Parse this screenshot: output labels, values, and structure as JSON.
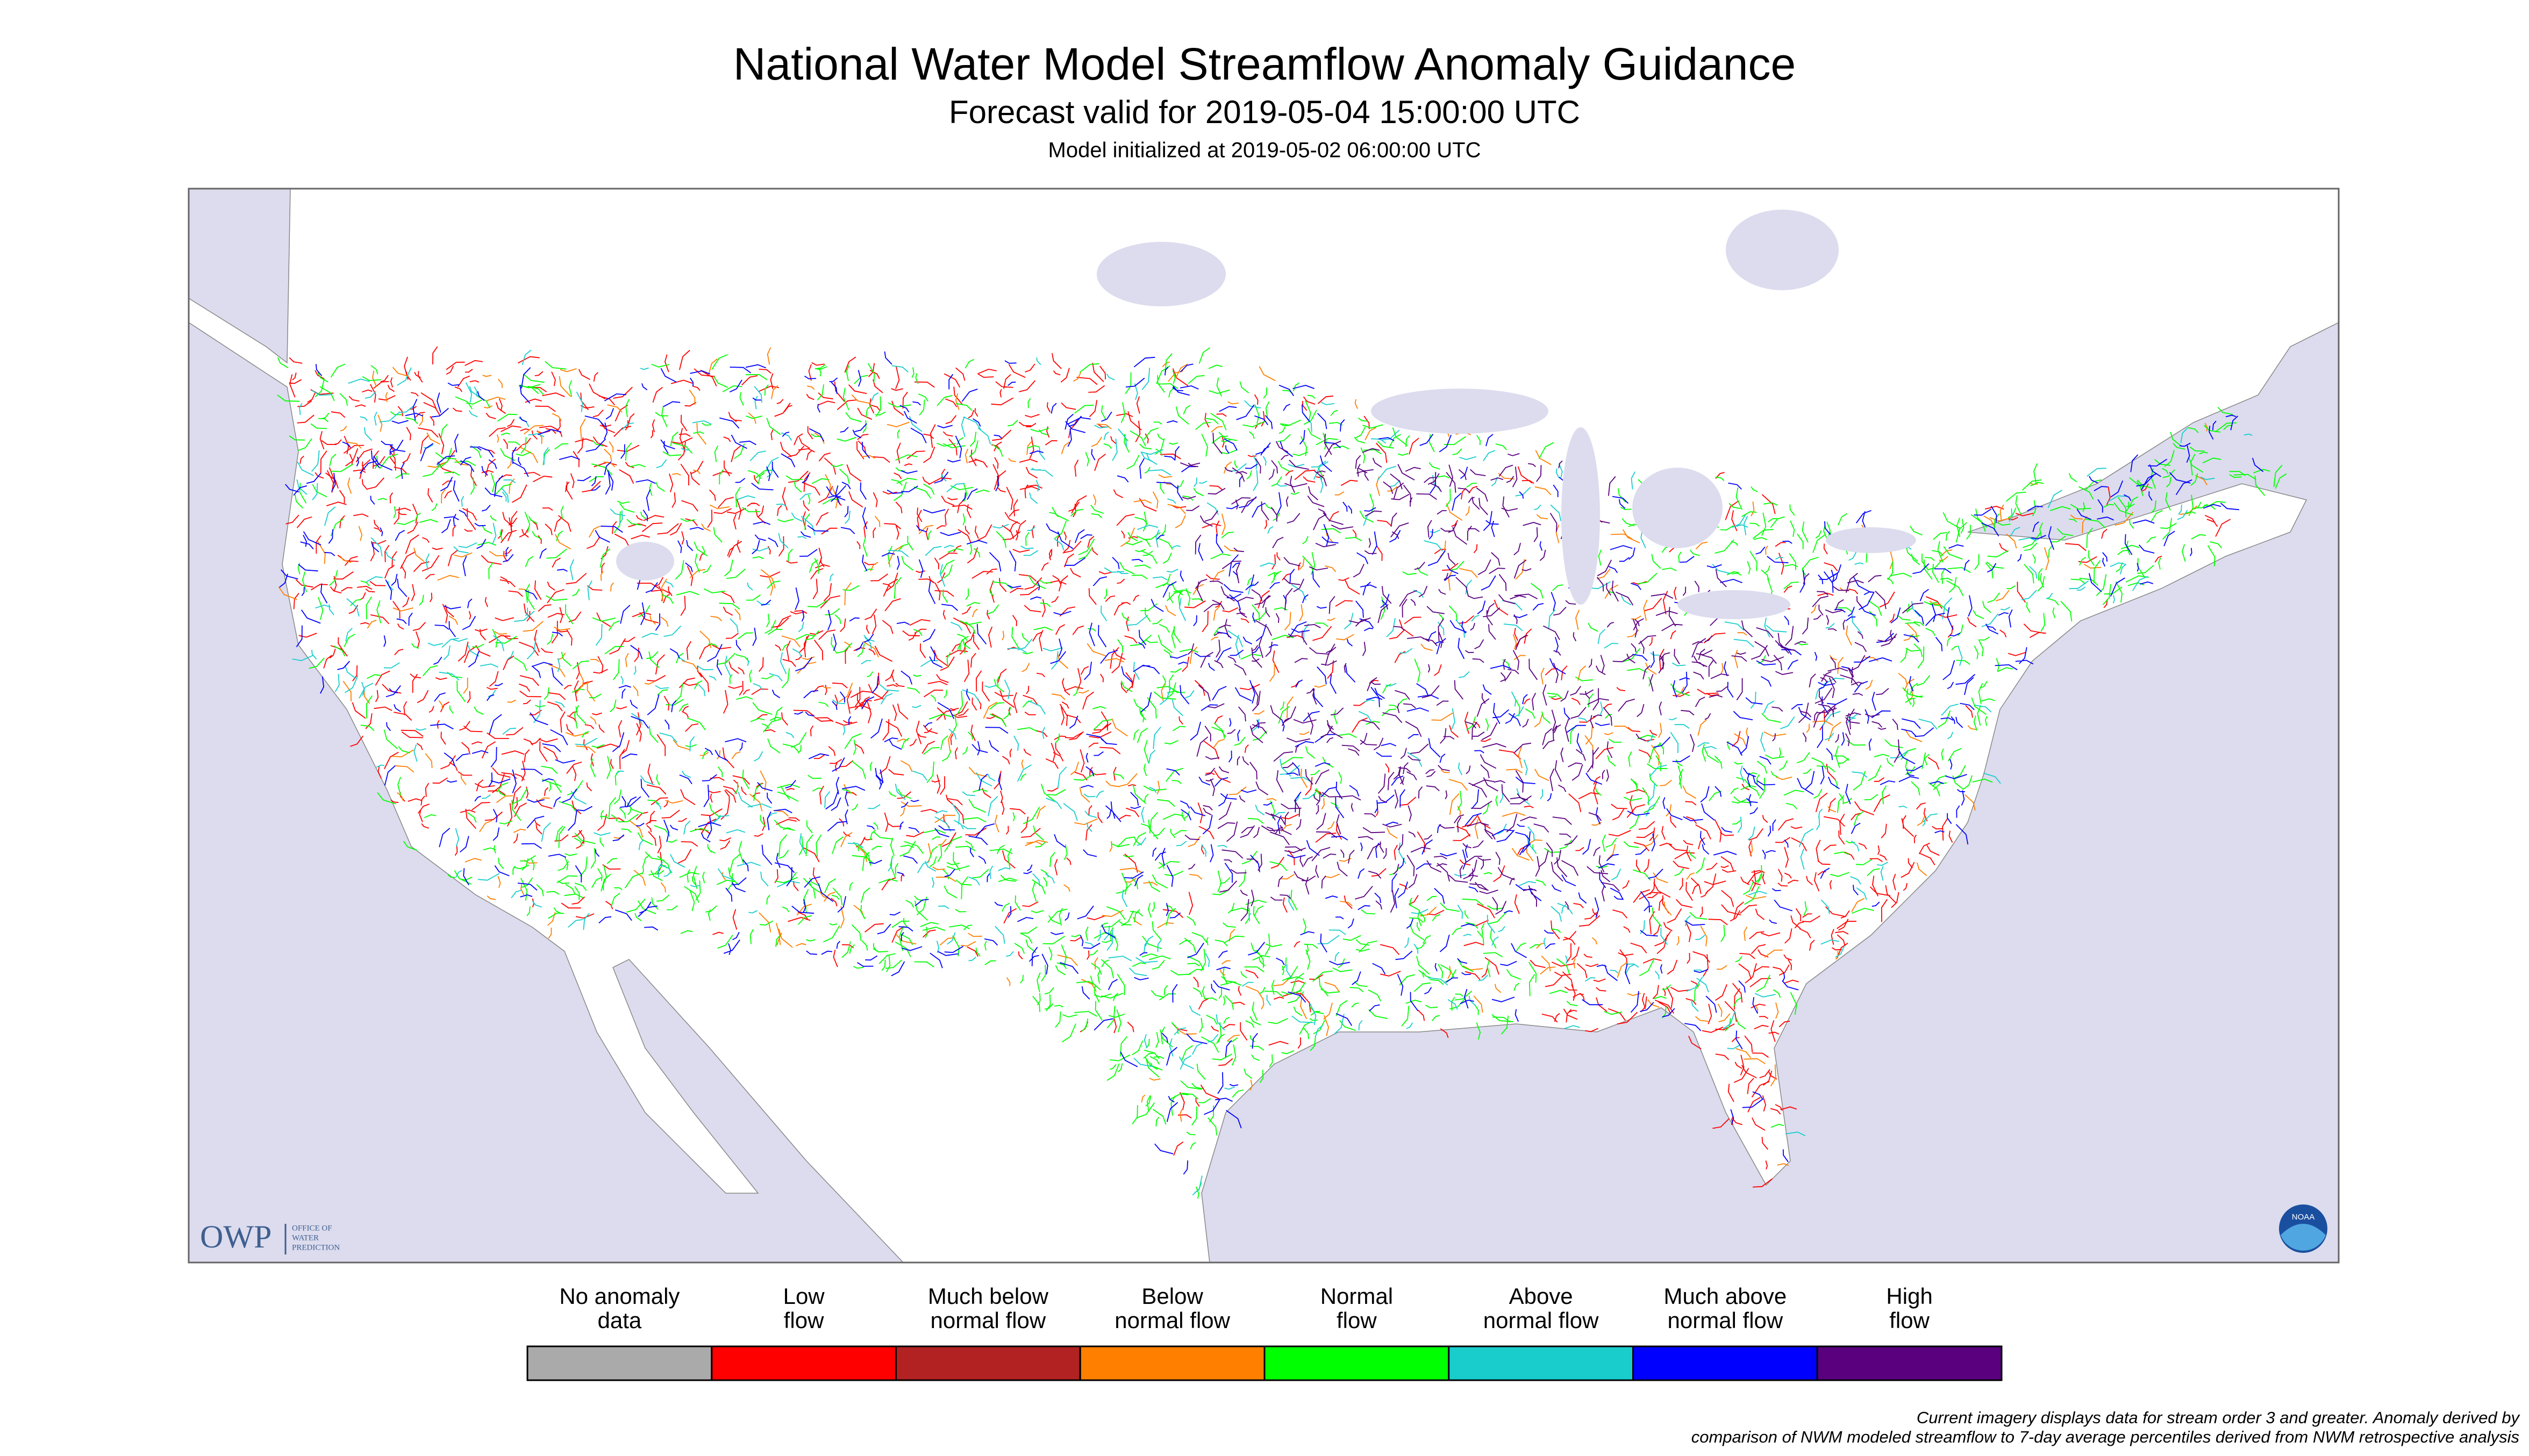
{
  "header": {
    "title": "National Water Model Streamflow Anomaly Guidance",
    "subtitle": "Forecast valid for 2019-05-04 15:00:00 UTC",
    "init": "Model initialized at 2019-05-02 06:00:00 UTC"
  },
  "legend": [
    {
      "lines": [
        "No anomaly",
        "data"
      ],
      "color": "#aaaaaa"
    },
    {
      "lines": [
        "Low",
        "flow"
      ],
      "color": "#ff0000"
    },
    {
      "lines": [
        "Much below",
        "normal flow"
      ],
      "color": "#b22222"
    },
    {
      "lines": [
        "Below",
        "normal flow"
      ],
      "color": "#ff7f00"
    },
    {
      "lines": [
        "Normal",
        "flow"
      ],
      "color": "#00ff00"
    },
    {
      "lines": [
        "Above",
        "normal flow"
      ],
      "color": "#19cdcd"
    },
    {
      "lines": [
        "Much above",
        "normal flow"
      ],
      "color": "#0000ff"
    },
    {
      "lines": [
        "High",
        "flow"
      ],
      "color": "#5a007f"
    }
  ],
  "footnote": [
    "Current imagery displays data for stream order 3 and greater. Anomaly derived by",
    "comparison of NWM modeled streamflow to 7-day average percentiles derived from NWM retrospective analysis"
  ],
  "logo": {
    "short": "OWP",
    "long": [
      "OFFICE OF",
      "WATER",
      "PREDICTION"
    ],
    "noaa": "NOAA"
  }
}
